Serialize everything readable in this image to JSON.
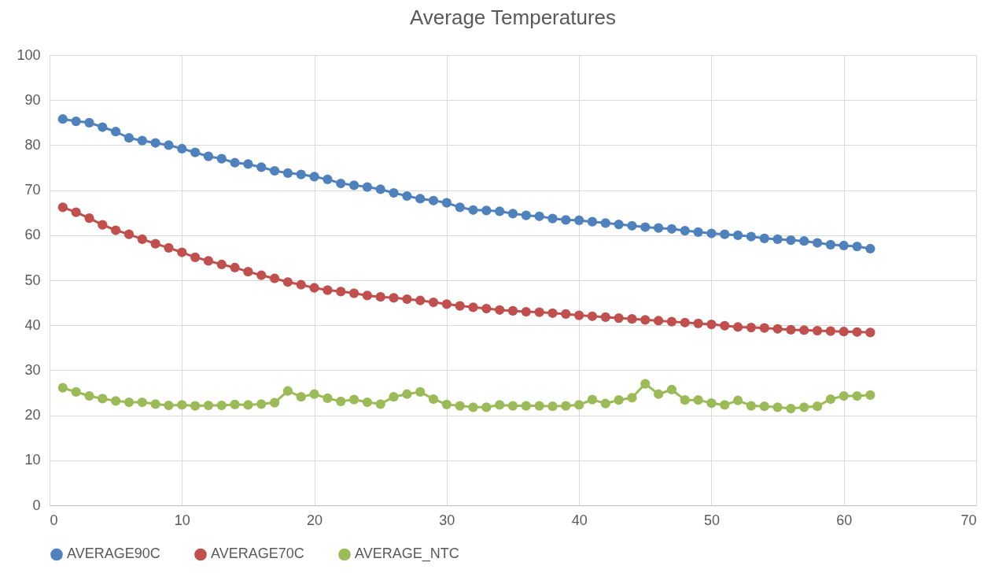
{
  "chart_data": {
    "type": "line",
    "title": "Average Temperatures",
    "x": [
      1,
      2,
      3,
      4,
      5,
      6,
      7,
      8,
      9,
      10,
      11,
      12,
      13,
      14,
      15,
      16,
      17,
      18,
      19,
      20,
      21,
      22,
      23,
      24,
      25,
      26,
      27,
      28,
      29,
      30,
      31,
      32,
      33,
      34,
      35,
      36,
      37,
      38,
      39,
      40,
      41,
      42,
      43,
      44,
      45,
      46,
      47,
      48,
      49,
      50,
      51,
      52,
      53,
      54,
      55,
      56,
      57,
      58,
      59,
      60,
      61,
      62
    ],
    "series": [
      {
        "name": "AVERAGE90C",
        "color": "#4f81bd",
        "values": [
          85.8,
          85.3,
          85.0,
          84.0,
          83.0,
          81.6,
          81.0,
          80.5,
          80.0,
          79.2,
          78.4,
          77.5,
          77.0,
          76.1,
          75.8,
          75.1,
          74.3,
          73.8,
          73.5,
          73.0,
          72.4,
          71.5,
          71.1,
          70.7,
          70.2,
          69.4,
          68.7,
          68.1,
          67.7,
          67.2,
          66.2,
          65.6,
          65.5,
          65.3,
          64.8,
          64.4,
          64.2,
          63.7,
          63.4,
          63.3,
          63.0,
          62.7,
          62.4,
          62.1,
          61.8,
          61.6,
          61.4,
          61.0,
          60.7,
          60.4,
          60.2,
          60.0,
          59.7,
          59.3,
          59.1,
          58.9,
          58.7,
          58.3,
          57.9,
          57.7,
          57.5,
          57.0
        ]
      },
      {
        "name": "AVERAGE70C",
        "color": "#c0504d",
        "values": [
          66.2,
          65.1,
          63.8,
          62.3,
          61.1,
          60.2,
          59.1,
          58.1,
          57.2,
          56.2,
          55.1,
          54.3,
          53.5,
          52.8,
          51.9,
          51.1,
          50.4,
          49.6,
          49.0,
          48.3,
          47.8,
          47.5,
          47.1,
          46.6,
          46.3,
          46.1,
          45.8,
          45.5,
          45.1,
          44.7,
          44.3,
          44.0,
          43.7,
          43.4,
          43.2,
          43.0,
          42.9,
          42.7,
          42.5,
          42.2,
          42.0,
          41.8,
          41.6,
          41.4,
          41.2,
          41.0,
          40.8,
          40.6,
          40.4,
          40.2,
          39.9,
          39.6,
          39.5,
          39.4,
          39.2,
          39.0,
          38.9,
          38.8,
          38.7,
          38.6,
          38.5,
          38.4
        ]
      },
      {
        "name": "AVERAGE_NTC",
        "color": "#9bbb59",
        "values": [
          26.1,
          25.2,
          24.3,
          23.7,
          23.2,
          22.9,
          22.9,
          22.5,
          22.2,
          22.3,
          22.1,
          22.2,
          22.2,
          22.4,
          22.3,
          22.5,
          22.8,
          25.4,
          24.1,
          24.7,
          23.8,
          23.1,
          23.5,
          22.9,
          22.5,
          24.1,
          24.7,
          25.2,
          23.6,
          22.4,
          22.1,
          21.8,
          21.8,
          22.3,
          22.1,
          22.1,
          22.1,
          22.0,
          22.1,
          22.3,
          23.5,
          22.6,
          23.4,
          23.9,
          27.0,
          24.7,
          25.7,
          23.4,
          23.4,
          22.7,
          22.3,
          23.3,
          22.1,
          22.0,
          21.8,
          21.5,
          21.8,
          22.0,
          23.6,
          24.3,
          24.3,
          24.5
        ]
      }
    ],
    "xlim": [
      0,
      70
    ],
    "xticks": [
      0,
      10,
      20,
      30,
      40,
      50,
      60,
      70
    ],
    "ylim": [
      0,
      100
    ],
    "yticks": [
      0,
      10,
      20,
      30,
      40,
      50,
      60,
      70,
      80,
      90,
      100
    ],
    "grid": true,
    "legend": "bottom",
    "marker": "circle",
    "line_style": "solid"
  }
}
